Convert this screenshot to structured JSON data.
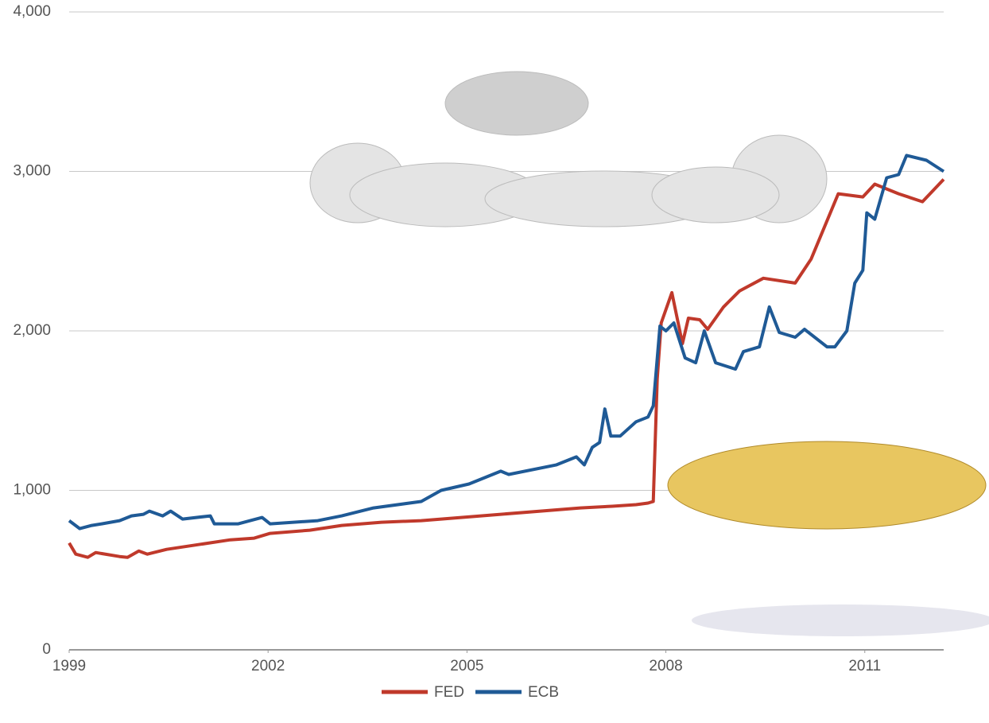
{
  "chart_data": {
    "type": "line",
    "xlim": [
      1999,
      2012.19
    ],
    "xticks": [
      1999,
      2002,
      2005,
      2008,
      2011
    ],
    "ylim": [
      0,
      4000
    ],
    "yticks": [
      0,
      {
        "value": 1000,
        "label": "1,000"
      },
      {
        "value": 2000,
        "label": "2,000"
      },
      {
        "value": 3000,
        "label": "3,000"
      },
      {
        "value": 4000,
        "label": "4,000"
      }
    ],
    "grid": true,
    "legend": "bottom",
    "series": [
      {
        "name": "FED",
        "color": "#c0392b",
        "x": [
          1999,
          1999.1,
          1999.28,
          1999.4,
          1999.76,
          1999.88,
          2000.05,
          2000.18,
          2000.47,
          2000.95,
          2001.43,
          2001.79,
          2002.03,
          2002.63,
          2003.11,
          2003.71,
          2004.31,
          2004.91,
          2005.51,
          2006.11,
          2006.71,
          2007.19,
          2007.55,
          2007.73,
          2007.81,
          2007.87,
          2007.93,
          2008.09,
          2008.25,
          2008.34,
          2008.51,
          2008.63,
          2008.87,
          2009.11,
          2009.47,
          2009.95,
          2010.19,
          2010.6,
          2010.97,
          2011.15,
          2011.51,
          2011.87,
          2012.19
        ],
        "values": [
          670,
          600,
          580,
          610,
          585,
          580,
          620,
          600,
          630,
          660,
          690,
          700,
          730,
          750,
          780,
          800,
          810,
          830,
          850,
          870,
          890,
          900,
          910,
          920,
          930,
          1700,
          2050,
          2240,
          1920,
          2080,
          2070,
          2010,
          2150,
          2250,
          2330,
          2300,
          2450,
          2860,
          2840,
          2920,
          2860,
          2810,
          2950
        ]
      },
      {
        "name": "ECB",
        "color": "#1f5a96",
        "x": [
          1999,
          1999.16,
          1999.34,
          1999.49,
          1999.76,
          1999.94,
          2000.12,
          2000.21,
          2000.41,
          2000.53,
          2000.71,
          2001.13,
          2001.19,
          2001.55,
          2001.91,
          2002.03,
          2002.75,
          2003.11,
          2003.59,
          2004.31,
          2004.61,
          2005.03,
          2005.51,
          2005.63,
          2006.35,
          2006.65,
          2006.77,
          2006.89,
          2007.0,
          2007.08,
          2007.17,
          2007.31,
          2007.55,
          2007.73,
          2007.81,
          2007.91,
          2008.0,
          2008.12,
          2008.29,
          2008.45,
          2008.58,
          2008.75,
          2009.05,
          2009.17,
          2009.41,
          2009.56,
          2009.71,
          2009.95,
          2010.09,
          2010.43,
          2010.55,
          2010.73,
          2010.85,
          2010.97,
          2011.03,
          2011.15,
          2011.33,
          2011.51,
          2011.63,
          2011.93,
          2012.19
        ],
        "values": [
          810,
          760,
          780,
          790,
          810,
          840,
          850,
          870,
          840,
          870,
          820,
          840,
          790,
          790,
          830,
          790,
          810,
          840,
          890,
          930,
          1000,
          1040,
          1120,
          1100,
          1160,
          1210,
          1160,
          1270,
          1300,
          1510,
          1340,
          1340,
          1430,
          1460,
          1530,
          2030,
          2000,
          2050,
          1830,
          1800,
          2000,
          1800,
          1760,
          1870,
          1900,
          2150,
          1990,
          1960,
          2010,
          1900,
          1900,
          2000,
          2300,
          2380,
          2740,
          2700,
          2960,
          2980,
          3100,
          3070,
          3000
        ]
      }
    ]
  }
}
